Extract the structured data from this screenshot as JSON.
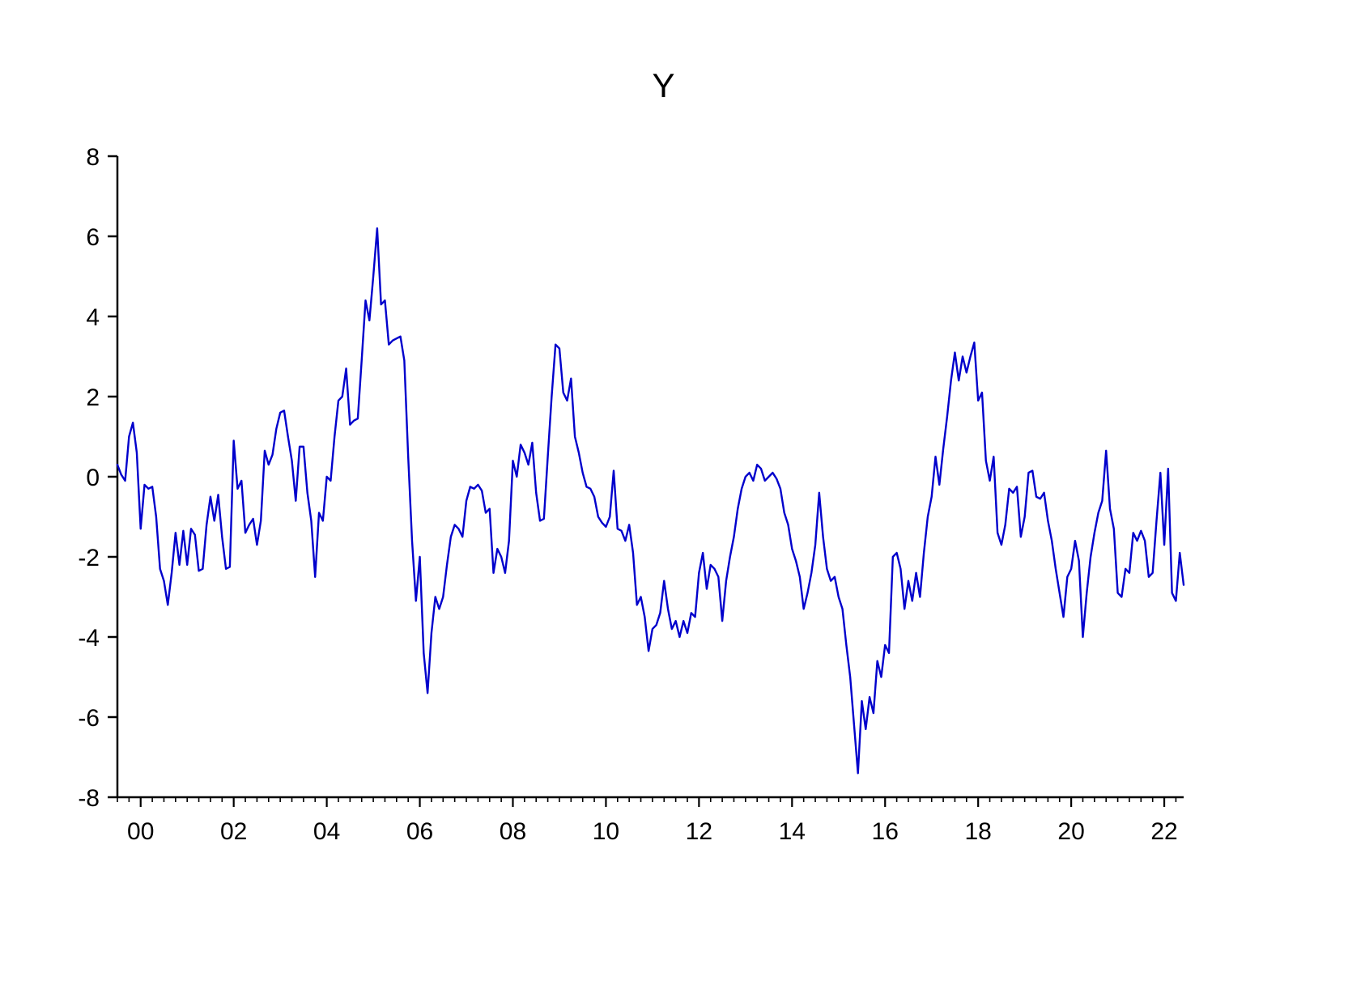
{
  "chart_data": {
    "type": "line",
    "title": "Y",
    "xlabel": "",
    "ylabel": "",
    "grid": false,
    "legend": "none",
    "background_color": "#ffffff",
    "axis_color": "#000000",
    "line_color": "#0000CC",
    "ylim": [
      -8,
      8
    ],
    "y_ticks": [
      8,
      6,
      4,
      2,
      0,
      -2,
      -4,
      -6,
      -8
    ],
    "x_tick_years": [
      2000,
      2002,
      2004,
      2006,
      2008,
      2010,
      2012,
      2014,
      2016,
      2018,
      2020,
      2022
    ],
    "x_tick_labels": [
      "00",
      "02",
      "04",
      "06",
      "08",
      "10",
      "12",
      "14",
      "16",
      "18",
      "20",
      "22"
    ],
    "series": [
      {
        "name": "Y",
        "frequency": "monthly",
        "start_period": "1999M07",
        "start_decimal_year": 1999.5,
        "values": [
          0.3,
          0.05,
          -0.1,
          1.0,
          1.35,
          0.6,
          -1.3,
          -0.2,
          -0.3,
          -0.25,
          -1.0,
          -2.3,
          -2.6,
          -3.2,
          -2.4,
          -1.4,
          -2.2,
          -1.35,
          -2.2,
          -1.3,
          -1.45,
          -2.35,
          -2.3,
          -1.2,
          -0.5,
          -1.1,
          -0.45,
          -1.5,
          -2.3,
          -2.25,
          0.9,
          -0.3,
          -0.1,
          -1.4,
          -1.2,
          -1.05,
          -1.7,
          -1.1,
          0.65,
          0.3,
          0.55,
          1.2,
          1.6,
          1.65,
          1.0,
          0.4,
          -0.6,
          0.75,
          0.75,
          -0.4,
          -1.1,
          -2.5,
          -0.9,
          -1.1,
          0.0,
          -0.1,
          1.0,
          1.9,
          2.0,
          2.7,
          1.3,
          1.4,
          1.45,
          2.9,
          4.4,
          3.9,
          5.0,
          6.2,
          4.3,
          4.4,
          3.3,
          3.4,
          3.45,
          3.5,
          2.9,
          0.5,
          -1.6,
          -3.1,
          -2.0,
          -4.4,
          -5.4,
          -3.9,
          -3.0,
          -3.3,
          -3.0,
          -2.2,
          -1.5,
          -1.2,
          -1.3,
          -1.5,
          -0.6,
          -0.25,
          -0.3,
          -0.2,
          -0.35,
          -0.9,
          -0.8,
          -2.4,
          -1.8,
          -2.0,
          -2.4,
          -1.6,
          0.4,
          0.0,
          0.8,
          0.6,
          0.3,
          0.85,
          -0.4,
          -1.1,
          -1.05,
          0.5,
          2.0,
          3.3,
          3.2,
          2.1,
          1.9,
          2.45,
          1.0,
          0.6,
          0.1,
          -0.25,
          -0.3,
          -0.5,
          -1.0,
          -1.15,
          -1.25,
          -1.0,
          0.15,
          -1.3,
          -1.35,
          -1.6,
          -1.2,
          -1.9,
          -3.2,
          -3.0,
          -3.5,
          -4.35,
          -3.8,
          -3.7,
          -3.4,
          -2.6,
          -3.3,
          -3.8,
          -3.6,
          -4.0,
          -3.6,
          -3.9,
          -3.4,
          -3.5,
          -2.4,
          -1.9,
          -2.8,
          -2.2,
          -2.3,
          -2.5,
          -3.6,
          -2.6,
          -2.0,
          -1.5,
          -0.8,
          -0.3,
          0.0,
          0.1,
          -0.1,
          0.3,
          0.2,
          -0.1,
          0.0,
          0.1,
          -0.05,
          -0.3,
          -0.9,
          -1.2,
          -1.8,
          -2.1,
          -2.5,
          -3.3,
          -2.9,
          -2.4,
          -1.7,
          -0.4,
          -1.5,
          -2.3,
          -2.6,
          -2.5,
          -3.0,
          -3.3,
          -4.2,
          -5.0,
          -6.2,
          -7.4,
          -5.6,
          -6.3,
          -5.5,
          -5.9,
          -4.6,
          -5.0,
          -4.2,
          -4.4,
          -2.0,
          -1.9,
          -2.3,
          -3.3,
          -2.6,
          -3.1,
          -2.4,
          -3.0,
          -1.9,
          -1.0,
          -0.5,
          0.5,
          -0.2,
          0.7,
          1.5,
          2.4,
          3.1,
          2.4,
          3.0,
          2.6,
          3.0,
          3.35,
          1.9,
          2.1,
          0.4,
          -0.1,
          0.5,
          -1.4,
          -1.7,
          -1.2,
          -0.3,
          -0.4,
          -0.25,
          -1.5,
          -1.0,
          0.1,
          0.15,
          -0.5,
          -0.55,
          -0.4,
          -1.1,
          -1.6,
          -2.3,
          -2.9,
          -3.5,
          -2.5,
          -2.3,
          -1.6,
          -2.1,
          -4.0,
          -2.9,
          -2.0,
          -1.4,
          -0.9,
          -0.6,
          0.65,
          -0.8,
          -1.3,
          -2.9,
          -3.0,
          -2.3,
          -2.4,
          -1.4,
          -1.6,
          -1.35,
          -1.6,
          -2.5,
          -2.4,
          -1.1,
          0.1,
          -1.7,
          0.2,
          -2.9,
          -3.1,
          -1.9,
          -2.7
        ]
      }
    ]
  },
  "layout_meta": {
    "tick_label_fontsize": "30",
    "title_fontsize": "42"
  }
}
